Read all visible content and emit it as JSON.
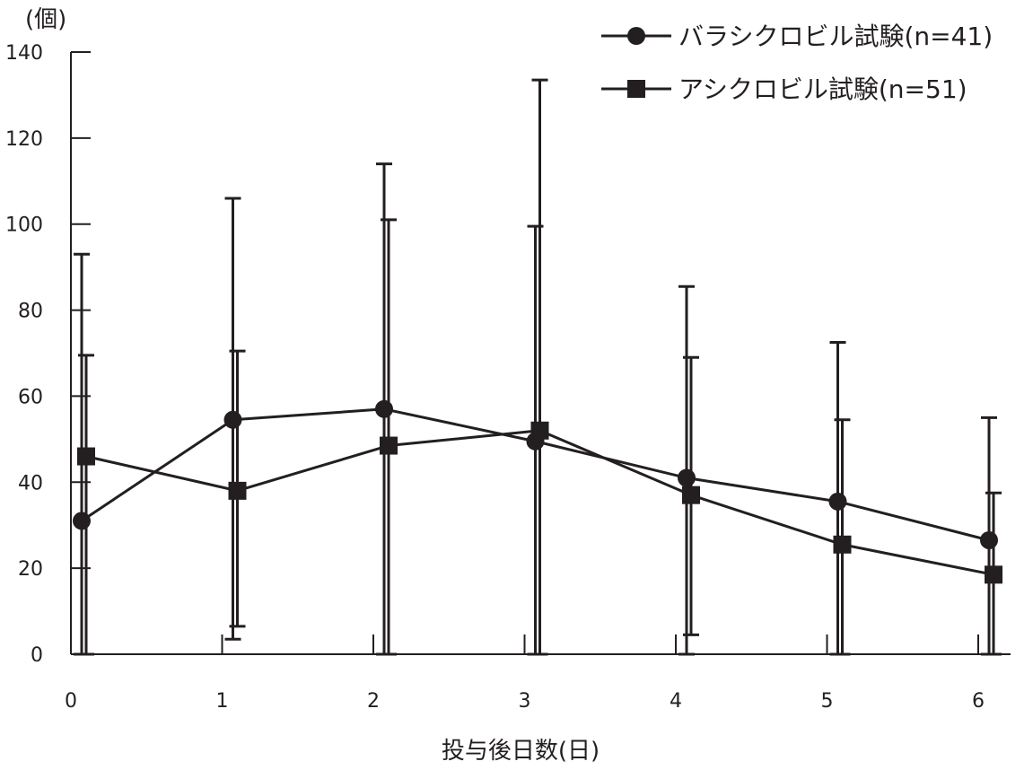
{
  "chart_data": {
    "type": "line",
    "x": [
      0,
      1,
      2,
      3,
      4,
      5,
      6
    ],
    "xlabel": "投与後日数(日)",
    "ylabel": "(個)",
    "ylim": [
      0,
      140
    ],
    "xticks": [
      "0",
      "1",
      "2",
      "3",
      "4",
      "5",
      "6"
    ],
    "yticks": [
      "0",
      "20",
      "40",
      "60",
      "80",
      "100",
      "120",
      "140"
    ],
    "legend_position": "top-right",
    "grid": false,
    "series": [
      {
        "name": "バラシクロビル試験(n=41)",
        "marker": "circle",
        "values": [
          31,
          54.5,
          57,
          49.5,
          41,
          35.5,
          26.5
        ],
        "error_upper": [
          93,
          106,
          114,
          99.5,
          85.5,
          72.5,
          55
        ],
        "error_lower": [
          0,
          3.5,
          0,
          0,
          0,
          0,
          0
        ]
      },
      {
        "name": "アシクロビル試験(n=51)",
        "marker": "square",
        "values": [
          46,
          38,
          48.5,
          52,
          37,
          25.5,
          18.5
        ],
        "error_upper": [
          69.5,
          70.5,
          101,
          133.5,
          69,
          54.5,
          37.5
        ],
        "error_lower": [
          0,
          6.5,
          0,
          0,
          4.5,
          0,
          0
        ]
      }
    ],
    "colors": {
      "line": "#231f20",
      "background": "#ffffff"
    }
  }
}
